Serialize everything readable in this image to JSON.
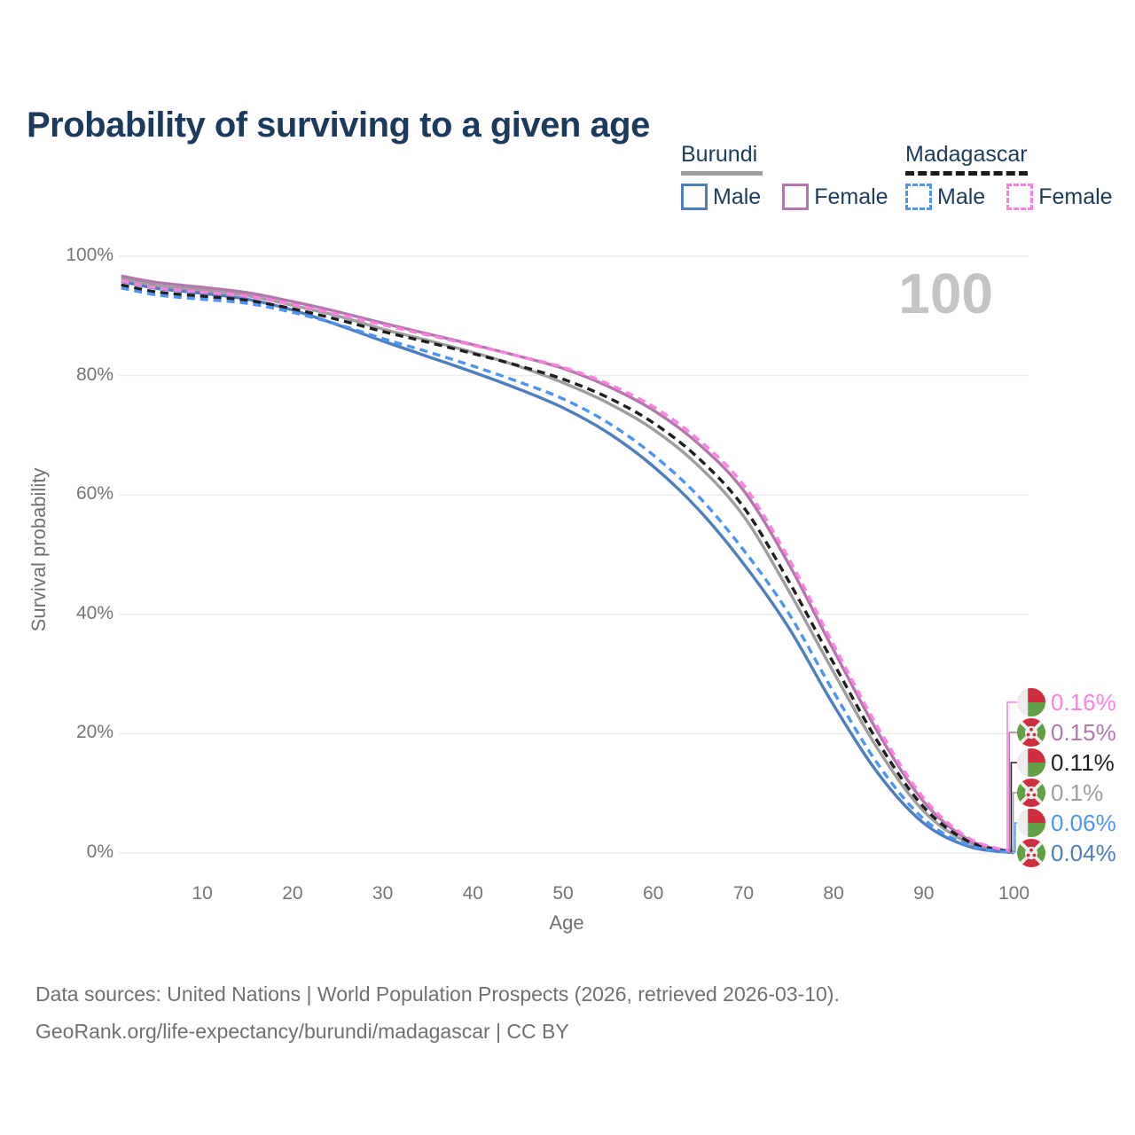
{
  "title": "Probability of surviving to a given age",
  "annotation_age": "100",
  "legend": {
    "groups": [
      {
        "label": "Burundi",
        "line_style": "solid",
        "items": [
          {
            "label": "Male",
            "color": "#4d7ebf"
          },
          {
            "label": "Female",
            "color": "#b377ae"
          }
        ]
      },
      {
        "label": "Madagascar",
        "line_style": "dashed",
        "items": [
          {
            "label": "Male",
            "color": "#4d94f7"
          },
          {
            "label": "Female",
            "color": "#ff80df"
          }
        ]
      }
    ]
  },
  "chart_data": {
    "type": "line",
    "title": "Probability of surviving to a given age",
    "xlabel": "Age",
    "ylabel": "Survival probability",
    "xlim": [
      0,
      100
    ],
    "ylim": [
      0,
      100
    ],
    "grid": "horizontal",
    "legend_position": "top-right",
    "x_ages": [
      1,
      5,
      10,
      15,
      20,
      25,
      30,
      35,
      40,
      45,
      50,
      55,
      60,
      65,
      70,
      75,
      80,
      85,
      90,
      95,
      100
    ],
    "xticks": [
      10,
      20,
      30,
      40,
      50,
      60,
      70,
      80,
      90,
      100
    ],
    "yticks": [
      {
        "value": 0,
        "label": "0%"
      },
      {
        "value": 20,
        "label": "20%"
      },
      {
        "value": 40,
        "label": "40%"
      },
      {
        "value": 60,
        "label": "60%"
      },
      {
        "value": 80,
        "label": "80%"
      },
      {
        "value": 100,
        "label": "100%"
      }
    ],
    "series": [
      {
        "id": "burundi_total",
        "name": "Burundi Both sexes",
        "country": "Burundi",
        "sex": "Both",
        "color": "#9e9e9e",
        "dashed": false,
        "values": [
          96.3,
          95.1,
          94.3,
          93.4,
          91.8,
          90.0,
          87.8,
          85.9,
          83.9,
          81.6,
          78.8,
          75.4,
          71.0,
          64.9,
          56.5,
          44.0,
          30.3,
          17.2,
          7.0,
          1.7,
          0.1
        ]
      },
      {
        "id": "burundi_female",
        "name": "Burundi Female",
        "country": "Burundi",
        "sex": "Female",
        "color": "#b377ae",
        "dashed": false,
        "values": [
          96.7,
          95.6,
          94.8,
          93.9,
          92.4,
          90.7,
          88.8,
          87.0,
          85.2,
          83.3,
          81.2,
          78.2,
          74.2,
          68.6,
          60.8,
          48.5,
          34.0,
          20.0,
          8.6,
          2.2,
          0.15
        ]
      },
      {
        "id": "burundi_male",
        "name": "Burundi Male",
        "country": "Burundi",
        "sex": "Male",
        "color": "#4d7ebf",
        "dashed": false,
        "values": [
          95.8,
          94.6,
          93.8,
          92.8,
          91.0,
          88.5,
          85.8,
          83.2,
          80.6,
          77.8,
          74.6,
          70.4,
          64.8,
          57.6,
          48.5,
          37.8,
          24.8,
          13.2,
          5.0,
          1.1,
          0.04
        ]
      },
      {
        "id": "madagascar_total",
        "name": "Madagascar Both sexes",
        "country": "Madagascar",
        "sex": "Both",
        "color": "#1f1f1f",
        "dashed": true,
        "values": [
          95.2,
          94.0,
          93.3,
          92.6,
          91.2,
          89.4,
          87.4,
          85.6,
          83.7,
          81.7,
          79.4,
          76.3,
          72.1,
          66.2,
          58.0,
          45.6,
          31.8,
          18.4,
          7.7,
          1.9,
          0.11
        ]
      },
      {
        "id": "madagascar_female",
        "name": "Madagascar Female",
        "country": "Madagascar",
        "sex": "Female",
        "color": "#ff80df",
        "dashed": true,
        "values": [
          95.9,
          94.7,
          94.0,
          93.3,
          91.9,
          90.3,
          88.5,
          86.8,
          85.1,
          83.3,
          81.4,
          78.6,
          74.8,
          69.3,
          61.7,
          49.4,
          34.9,
          20.8,
          9.2,
          2.5,
          0.16
        ]
      },
      {
        "id": "madagascar_male",
        "name": "Madagascar Male",
        "country": "Madagascar",
        "sex": "Male",
        "color": "#4d94f7",
        "dashed": true,
        "values": [
          94.7,
          93.5,
          92.8,
          92.1,
          90.6,
          88.6,
          86.2,
          84.0,
          81.6,
          79.0,
          76.1,
          72.1,
          66.7,
          59.8,
          50.8,
          40.2,
          27.0,
          14.7,
          5.7,
          1.3,
          0.06
        ]
      }
    ]
  },
  "end_labels": [
    {
      "value": "0.16%",
      "color": "#ff80df",
      "series": "madagascar_female",
      "flag": "madagascar-flag"
    },
    {
      "value": "0.15%",
      "color": "#b377ae",
      "series": "burundi_female",
      "flag": "burundi-flag"
    },
    {
      "value": "0.11%",
      "color": "#1f1f1f",
      "series": "madagascar_total",
      "flag": "madagascar-flag"
    },
    {
      "value": "0.1%",
      "color": "#9e9e9e",
      "series": "burundi_total",
      "flag": "burundi-flag"
    },
    {
      "value": "0.06%",
      "color": "#4d94f7",
      "series": "madagascar_male",
      "flag": "madagascar-flag"
    },
    {
      "value": "0.04%",
      "color": "#4d7ebf",
      "series": "burundi_male",
      "flag": "burundi-flag"
    }
  ],
  "footer": {
    "line1": "Data sources: United Nations | World Population Prospects (2026, retrieved 2026-03-10).",
    "line2": "GeoRank.org/life-expectancy/burundi/madagascar | CC BY"
  },
  "palette": {
    "title_text": "#1c3a5e",
    "axis_text": "#757575",
    "gridline": "#ececec",
    "age_counter": "#c4c4c4",
    "flag_red": "#cf2e3f",
    "flag_green": "#61a044",
    "flag_white": "#ededed"
  }
}
